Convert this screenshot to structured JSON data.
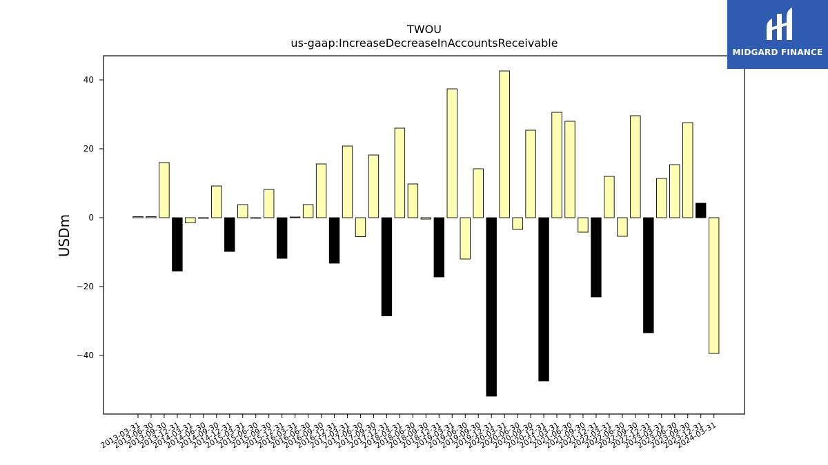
{
  "logo": {
    "text": "MIDGARD FINANCE",
    "background": "#2f5bb1"
  },
  "chart_data": {
    "type": "bar",
    "title": "TWOU",
    "subtitle": "us-gaap:IncreaseDecreaseInAccountsReceivable",
    "xlabel": "",
    "ylabel": "USDm",
    "ylim": [
      -57,
      47
    ],
    "yticks": [
      -40,
      -20,
      0,
      20,
      40
    ],
    "grid": false,
    "colors": {
      "q4_bar": "#000000",
      "other_bar": "#ffffb3",
      "edge": "#000000"
    },
    "categories": [
      "2013-03-31",
      "2013-06-30",
      "2013-09-30",
      "2013-12-31",
      "2014-03-31",
      "2014-06-30",
      "2014-09-30",
      "2014-12-31",
      "2015-03-31",
      "2015-06-30",
      "2015-09-30",
      "2015-12-31",
      "2016-03-31",
      "2016-06-30",
      "2016-09-30",
      "2016-12-31",
      "2017-03-31",
      "2017-06-30",
      "2017-09-30",
      "2017-12-31",
      "2018-03-31",
      "2018-06-30",
      "2018-09-30",
      "2018-12-31",
      "2019-03-31",
      "2019-06-30",
      "2019-09-30",
      "2019-12-31",
      "2020-03-31",
      "2020-06-30",
      "2020-09-30",
      "2020-12-31",
      "2021-03-31",
      "2021-06-30",
      "2021-09-30",
      "2021-12-31",
      "2022-03-31",
      "2022-06-30",
      "2022-09-30",
      "2022-12-31",
      "2023-03-31",
      "2023-06-30",
      "2023-09-30",
      "2023-12-31",
      "2024-03-31"
    ],
    "values": [
      0.3,
      0.3,
      16,
      -15.5,
      -1.5,
      0,
      9.2,
      -9.8,
      3.8,
      0,
      8.2,
      -11.8,
      0.2,
      3.8,
      15.6,
      -13.2,
      20.8,
      -5.5,
      18.2,
      -28.5,
      26,
      9.8,
      -0.4,
      -17.2,
      37.4,
      -12,
      14.2,
      -51.8,
      42.6,
      -3.4,
      25.4,
      -47.4,
      30.6,
      28,
      -4.2,
      -23,
      12,
      -5.4,
      29.6,
      -33.4,
      11.4,
      15.4,
      27.6,
      4.2,
      -39.4
    ],
    "bar_colors": [
      "#ffffb3",
      "#ffffb3",
      "#ffffb3",
      "#000000",
      "#ffffb3",
      "#ffffb3",
      "#ffffb3",
      "#000000",
      "#ffffb3",
      "#ffffb3",
      "#ffffb3",
      "#000000",
      "#ffffb3",
      "#ffffb3",
      "#ffffb3",
      "#000000",
      "#ffffb3",
      "#ffffb3",
      "#ffffb3",
      "#000000",
      "#ffffb3",
      "#ffffb3",
      "#ffffb3",
      "#000000",
      "#ffffb3",
      "#ffffb3",
      "#ffffb3",
      "#000000",
      "#ffffb3",
      "#ffffb3",
      "#ffffb3",
      "#000000",
      "#ffffb3",
      "#ffffb3",
      "#ffffb3",
      "#000000",
      "#ffffb3",
      "#ffffb3",
      "#ffffb3",
      "#000000",
      "#ffffb3",
      "#ffffb3",
      "#ffffb3",
      "#000000",
      "#ffffb3"
    ]
  }
}
